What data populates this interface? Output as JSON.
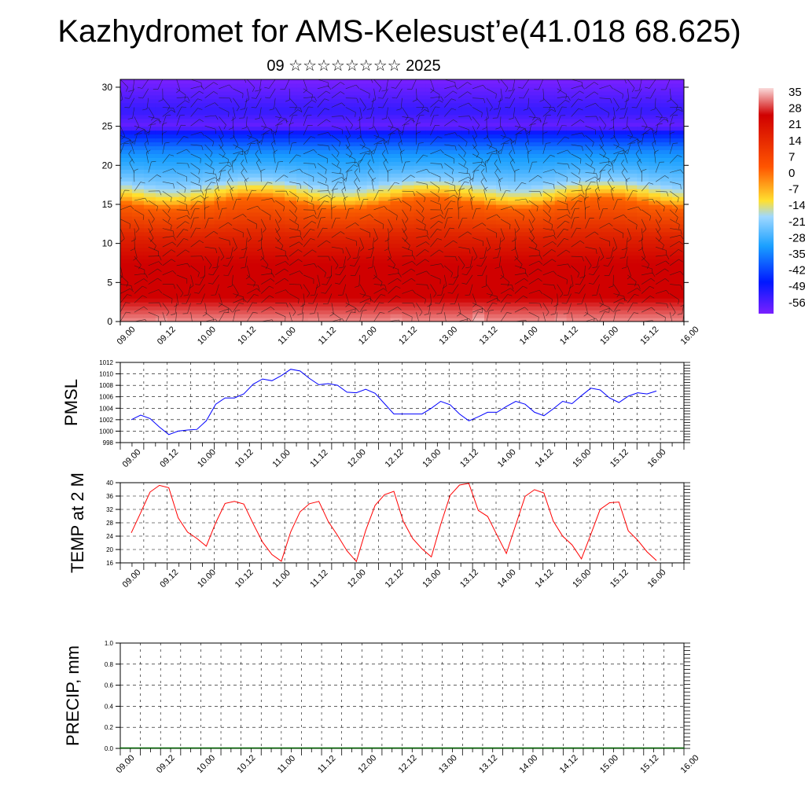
{
  "header": {
    "title": "Kazhydromet for AMS-Kelesust’e(41.018 68.625)",
    "subtitle": "09 ☆☆☆☆☆☆☆☆ 2025"
  },
  "time_ticks": [
    "09.00",
    "09.12",
    "10.00",
    "10.12",
    "11.00",
    "11.12",
    "12.00",
    "12.12",
    "13.00",
    "13.12",
    "14.00",
    "14.12",
    "15.00",
    "15.12",
    "16.00"
  ],
  "colorbar": {
    "labels": [
      "35",
      "28",
      "21",
      "14",
      "7",
      "0",
      "-7",
      "-14",
      "-21",
      "-28",
      "-35",
      "-42",
      "-49",
      "-56"
    ],
    "colors": {
      "hot": "#d00000",
      "warm": "#ff6a00",
      "mild": "#ffe030",
      "cool": "#9fd8ff",
      "cold": "#1aa0ff",
      "deep": "#0018ff",
      "frigid": "#7a20ff"
    }
  },
  "chart_data": [
    {
      "type": "heatmap",
      "title": "",
      "xlabel": "",
      "ylabel": "",
      "x": [
        "09.00",
        "09.12",
        "10.00",
        "10.12",
        "11.00",
        "11.12",
        "12.00",
        "12.12",
        "13.00",
        "13.12",
        "14.00",
        "14.12",
        "15.00",
        "15.12",
        "16.00"
      ],
      "yticks": [
        0,
        5,
        10,
        15,
        20,
        25,
        30
      ],
      "ylim": [
        0,
        31
      ],
      "zlim": [
        -56,
        35
      ],
      "profile_heights": [
        0,
        3,
        5,
        8,
        11,
        13,
        15,
        16,
        18,
        20,
        22,
        24,
        25,
        27,
        29,
        31
      ],
      "profile_temps": [
        33,
        28,
        25,
        20,
        14,
        8,
        2,
        -10,
        -24,
        -32,
        -38,
        -48,
        -55,
        -52,
        -54,
        -56
      ],
      "surface_peaks": [
        35,
        28,
        34,
        35,
        34,
        33
      ],
      "wind_barbs": true
    },
    {
      "type": "line",
      "ylabel": "PMSL",
      "ylim": [
        998,
        1012
      ],
      "yticks": [
        998,
        1000,
        1002,
        1004,
        1006,
        1008,
        1010,
        1012
      ],
      "x": [
        "09.00",
        "09.03",
        "09.06",
        "09.09",
        "09.12",
        "09.15",
        "09.18",
        "09.21",
        "10.00",
        "10.03",
        "10.06",
        "10.09",
        "10.12",
        "10.15",
        "10.18",
        "10.21",
        "11.00",
        "11.03",
        "11.06",
        "11.09",
        "11.12",
        "11.15",
        "11.18",
        "11.21",
        "12.00",
        "12.03",
        "12.06",
        "12.09",
        "12.12",
        "12.15",
        "12.18",
        "12.21",
        "13.00",
        "13.03",
        "13.06",
        "13.09",
        "13.12",
        "13.15",
        "13.18",
        "13.21",
        "14.00",
        "14.03",
        "14.06",
        "14.09",
        "14.12",
        "14.15",
        "14.18",
        "14.21",
        "15.00",
        "15.03",
        "15.06",
        "15.09",
        "15.12",
        "15.15",
        "15.18",
        "15.21",
        "16.00"
      ],
      "series": [
        {
          "name": "",
          "color": "#0000ff",
          "values": [
            1002,
            1002.8,
            1002.2,
            1000.7,
            999.4,
            1000,
            1000.2,
            1000.3,
            1001.8,
            1004.7,
            1005.8,
            1005.8,
            1006.5,
            1008.2,
            1009.1,
            1008.8,
            1009.7,
            1010.8,
            1010.5,
            1009.2,
            1008.1,
            1008.3,
            1008,
            1006.8,
            1006.7,
            1007.3,
            1006.6,
            1004.8,
            1003,
            1003,
            1003,
            1003,
            1004,
            1005.2,
            1004.6,
            1003,
            1001.8,
            1002.5,
            1003.3,
            1003.3,
            1004.3,
            1005.2,
            1004.7,
            1003.3,
            1002.7,
            1003.9,
            1005.2,
            1004.8,
            1006.2,
            1007.5,
            1007.2,
            1005.8,
            1005,
            1006.1,
            1006.7,
            1006.5,
            1007
          ]
        }
      ]
    },
    {
      "type": "line",
      "ylabel": "TEMP at 2 M",
      "ylim": [
        16,
        40
      ],
      "yticks": [
        16,
        20,
        24,
        28,
        32,
        36,
        40
      ],
      "x": [
        "09.00",
        "09.03",
        "09.06",
        "09.09",
        "09.12",
        "09.15",
        "09.18",
        "09.21",
        "10.00",
        "10.03",
        "10.06",
        "10.09",
        "10.12",
        "10.15",
        "10.18",
        "10.21",
        "11.00",
        "11.03",
        "11.06",
        "11.09",
        "11.12",
        "11.15",
        "11.18",
        "11.21",
        "12.00",
        "12.03",
        "12.06",
        "12.09",
        "12.12",
        "12.15",
        "12.18",
        "12.21",
        "13.00",
        "13.03",
        "13.06",
        "13.09",
        "13.12",
        "13.15",
        "13.18",
        "13.21",
        "14.00",
        "14.03",
        "14.06",
        "14.09",
        "14.12",
        "14.15",
        "14.18",
        "14.21",
        "15.00",
        "15.03",
        "15.06",
        "15.09",
        "15.12",
        "15.15",
        "15.18",
        "15.21",
        "16.00"
      ],
      "series": [
        {
          "name": "",
          "color": "#ff0000",
          "values": [
            25,
            31,
            37.2,
            39.2,
            38.5,
            29.5,
            25.2,
            23.3,
            21,
            28,
            33.8,
            34.4,
            33.6,
            27.7,
            22.2,
            18.5,
            16.5,
            25.3,
            31.3,
            33.7,
            34.4,
            28.4,
            24.2,
            19.6,
            16.4,
            25.7,
            33.2,
            36.4,
            37.4,
            28.5,
            23.3,
            20.2,
            17.8,
            27.5,
            36.2,
            39.3,
            39.8,
            31.7,
            29.9,
            24.3,
            18.8,
            27.4,
            35.9,
            37.9,
            36.9,
            28.5,
            24,
            21.4,
            17.2,
            24.5,
            32,
            34,
            34.2,
            25.6,
            22.8,
            19.3,
            16.7
          ]
        }
      ]
    },
    {
      "type": "bar",
      "ylabel": "PRECIP, mm",
      "ylim": [
        0,
        1
      ],
      "yticks": [
        "0.0",
        "0.2",
        "0.4",
        "0.6",
        "0.8",
        "1.0"
      ],
      "x": [
        "09.00",
        "09.12",
        "10.00",
        "10.12",
        "11.00",
        "11.12",
        "12.00",
        "12.12",
        "13.00",
        "13.12",
        "14.00",
        "14.12",
        "15.00",
        "15.12",
        "16.00"
      ],
      "values": [
        0,
        0,
        0,
        0,
        0,
        0,
        0,
        0,
        0,
        0,
        0,
        0,
        0,
        0,
        0
      ],
      "color": "#006400"
    }
  ]
}
